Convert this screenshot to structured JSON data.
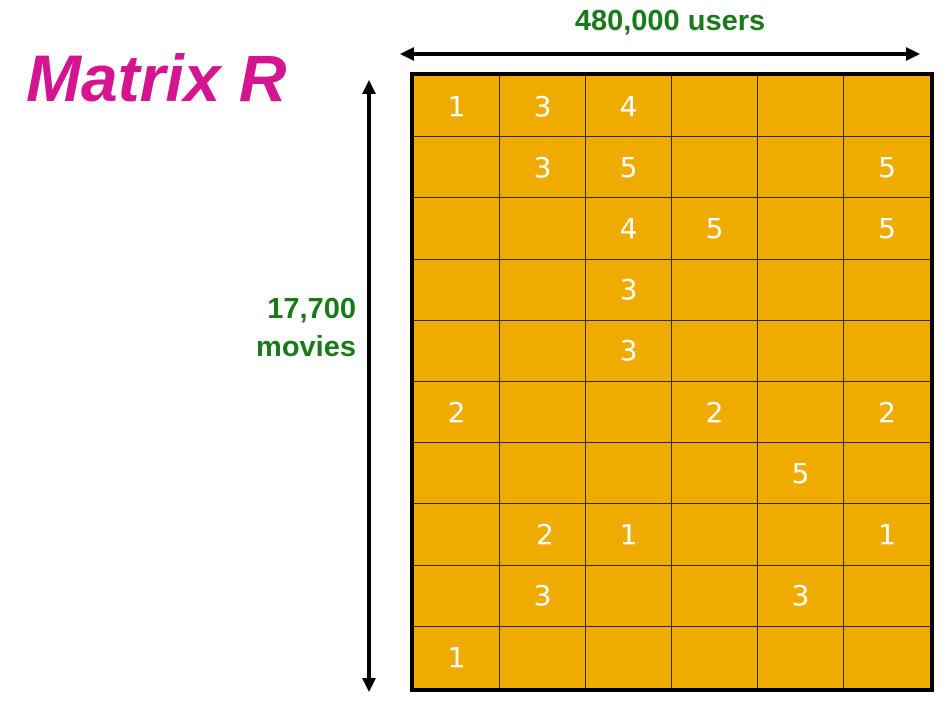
{
  "title": "Matrix R",
  "users_label": "480,000 users",
  "movies_label": [
    "17,700",
    "movies"
  ],
  "colors": {
    "title": "#d4158f",
    "labels": "#1a7a1a",
    "cell_fill": "#f0ab00",
    "cell_text": "#ffffff",
    "grid_lines": "#2a2a2a"
  },
  "matrix": {
    "rows": [
      [
        "1",
        "3",
        "4",
        "",
        "",
        ""
      ],
      [
        "",
        "3",
        "5",
        "",
        "",
        "5"
      ],
      [
        "",
        "",
        "4",
        "5",
        "",
        "5"
      ],
      [
        "",
        "",
        "3",
        "",
        "",
        ""
      ],
      [
        "",
        "",
        "3",
        "",
        "",
        ""
      ],
      [
        "2",
        "",
        "",
        "2",
        "",
        "2"
      ],
      [
        "",
        "",
        "",
        "",
        "5",
        ""
      ],
      [
        "",
        "2",
        "1",
        "",
        "",
        "1"
      ],
      [
        "",
        "3",
        "",
        "",
        "3",
        ""
      ],
      [
        "1",
        "",
        "",
        "",
        "",
        ""
      ]
    ]
  }
}
